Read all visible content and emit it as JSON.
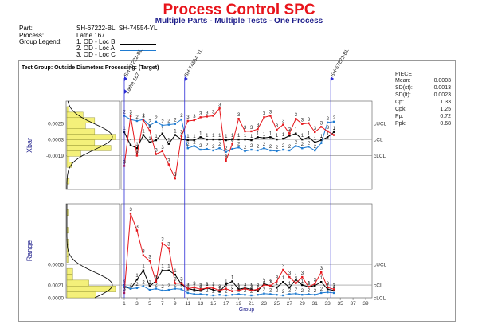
{
  "header": {
    "title": "Process Control SPC",
    "subtitle": "Multiple Parts - Multiple Tests - One Process",
    "part_label": "Part:",
    "part_value": "SH-67222-BL, SH-74554-YL",
    "process_label": "Process:",
    "process_value": "Lathe 167",
    "legend_label": "Group Legend:",
    "legend": [
      {
        "label": "1. OD - Loc B",
        "color": "#000000"
      },
      {
        "label": "2. OD - Loc A",
        "color": "#1f7bd1"
      },
      {
        "label": "3. OD - Loc C",
        "color": "#e5171c"
      }
    ]
  },
  "chart_data": [
    {
      "type": "line",
      "title": "Test Group: Outside Diameters Processing:  (Target)",
      "ylabel": "Xbar",
      "y_ticks": [
        "0.0025",
        "0.0003",
        "-0.0019"
      ],
      "limit_labels": [
        "cUCL",
        "cCL",
        "cLCL"
      ],
      "limits": {
        "ucl": 0.0025,
        "cl": 0.0003,
        "lcl": -0.0019
      },
      "ylim": [
        -0.0065,
        0.0055
      ],
      "x": [
        1,
        2,
        3,
        4,
        5,
        6,
        7,
        8,
        9,
        10,
        11,
        12,
        13,
        14,
        15,
        16,
        17,
        18,
        19,
        20,
        21,
        22,
        23,
        24,
        25,
        26,
        27,
        28,
        29,
        30,
        31,
        32,
        33,
        34
      ],
      "series": [
        {
          "name": "1. OD - Loc B",
          "point_label": "1",
          "color": "#000000",
          "values": [
            0.0013,
            -0.0005,
            -0.0009,
            0.0009,
            -0.0001,
            0.0002,
            0.0011,
            -0.0003,
            0.0009,
            0.0003,
            0.0002,
            0.0002,
            0.0006,
            0.0003,
            0.0003,
            0.0003,
            0.0002,
            0.0003,
            0.0003,
            0.0003,
            0.0002,
            0.0006,
            0.0005,
            0.0006,
            0.0003,
            0.0004,
            0.0008,
            0.0011,
            0.0003,
            0.0006,
            -0.0001,
            0.0002,
            0.0006,
            0.0013
          ]
        },
        {
          "name": "2. OD - Loc A",
          "point_label": "2",
          "color": "#1f7bd1",
          "values": [
            0.0035,
            0.003,
            0.0028,
            0.003,
            0.0022,
            0.0027,
            0.0022,
            0.0023,
            0.0024,
            0.003,
            -0.0009,
            -0.0006,
            -0.0011,
            -0.001,
            -0.0012,
            -0.0009,
            -0.0014,
            -0.001,
            -0.0008,
            -0.0013,
            -0.0011,
            -0.0012,
            -0.0009,
            -0.0012,
            -0.0013,
            -0.0011,
            -0.0012,
            -0.0006,
            -0.0009,
            -0.0007,
            -0.0012,
            -0.0002,
            0.0026,
            0.0027
          ]
        },
        {
          "name": "3. OD - Loc C",
          "point_label": "3",
          "color": "#e5171c",
          "values": [
            -0.0033,
            0.0035,
            -0.0019,
            0.0029,
            0.0015,
            -0.0017,
            -0.0013,
            -0.0031,
            -0.005,
            0.0008,
            0.0028,
            0.0029,
            0.0033,
            0.0034,
            0.0035,
            0.0045,
            -0.0026,
            -0.0003,
            0.0031,
            0.0014,
            0.0014,
            0.0017,
            0.0033,
            0.0035,
            0.0016,
            0.0023,
            0.0011,
            0.0031,
            0.0024,
            0.0025,
            0.0013,
            0.002,
            0.0014,
            0.0009
          ]
        }
      ],
      "markers": [
        {
          "x": 1,
          "label": "SH-67222-BL"
        },
        {
          "x": 10.5,
          "label": "SH-74554-YL"
        },
        {
          "x": 33.5,
          "label": "SH-67222-BL"
        }
      ],
      "process_marker": {
        "x": 1,
        "label": "Lathe 167"
      }
    },
    {
      "type": "line",
      "ylabel": "Range",
      "xlabel": "Group",
      "y_ticks": [
        "0.0055",
        "0.0021",
        "0.0000"
      ],
      "limit_labels": [
        "cUCL",
        "cCL",
        "cLCL"
      ],
      "limits": {
        "ucl": 0.0055,
        "cl": 0.0021,
        "lcl": 0.0
      },
      "ylim": [
        0,
        0.0155
      ],
      "x_ticks": [
        "1",
        "3",
        "5",
        "7",
        "9",
        "11",
        "13",
        "15",
        "17",
        "19",
        "21",
        "23",
        "25",
        "27",
        "29",
        "31",
        "33",
        "35",
        "37",
        "39"
      ],
      "x": [
        1,
        2,
        3,
        4,
        5,
        6,
        7,
        8,
        9,
        10,
        11,
        12,
        13,
        14,
        15,
        16,
        17,
        18,
        19,
        20,
        21,
        22,
        23,
        24,
        25,
        26,
        27,
        28,
        29,
        30,
        31,
        32,
        33,
        34
      ],
      "series": [
        {
          "name": "1. OD - Loc B",
          "point_label": "1",
          "color": "#000000",
          "values": [
            0.0018,
            0.0015,
            0.003,
            0.0045,
            0.0019,
            0.0028,
            0.0045,
            0.0045,
            0.0038,
            0.0022,
            0.0015,
            0.0013,
            0.0012,
            0.0016,
            0.0013,
            0.001,
            0.0022,
            0.0027,
            0.0014,
            0.0016,
            0.0014,
            0.0011,
            0.0023,
            0.002,
            0.0017,
            0.0026,
            0.0017,
            0.003,
            0.0021,
            0.0018,
            0.002,
            0.0026,
            0.0014,
            0.0012
          ]
        },
        {
          "name": "2. OD - Loc A",
          "point_label": "2",
          "color": "#1f7bd1",
          "values": [
            0.002,
            0.0015,
            0.0016,
            0.0019,
            0.0013,
            0.0015,
            0.0012,
            0.0013,
            0.0015,
            0.0014,
            0.0008,
            0.0006,
            0.0006,
            0.0005,
            0.0004,
            0.0005,
            0.0004,
            0.0005,
            0.0006,
            0.0005,
            0.0004,
            0.0005,
            0.0007,
            0.0006,
            0.0005,
            0.0004,
            0.0006,
            0.0007,
            0.0005,
            0.0006,
            0.0005,
            0.0008,
            0.0009,
            0.0008
          ]
        },
        {
          "name": "3. OD - Loc C",
          "point_label": "3",
          "color": "#e5171c",
          "values": [
            0.0008,
            0.0139,
            0.0111,
            0.007,
            0.0061,
            0.0026,
            0.009,
            0.0082,
            0.0024,
            0.0024,
            0.0015,
            0.0017,
            0.0014,
            0.0016,
            0.0016,
            0.0012,
            0.0015,
            0.0011,
            0.0012,
            0.0015,
            0.0012,
            0.0014,
            0.0021,
            0.002,
            0.0027,
            0.0046,
            0.0034,
            0.0024,
            0.0034,
            0.0018,
            0.0023,
            0.0042,
            0.0017,
            0.0014
          ]
        }
      ]
    }
  ],
  "stats": {
    "heading": "PIECE",
    "rows": [
      {
        "label": "Mean:",
        "value": "0.0003"
      },
      {
        "label": "SD(st):",
        "value": "0.0013"
      },
      {
        "label": "SD(lt):",
        "value": "0.0023"
      },
      {
        "label": "Cp:",
        "value": "1.33"
      },
      {
        "label": "Cpk:",
        "value": "1.25"
      },
      {
        "label": "Pp:",
        "value": "0.72"
      },
      {
        "label": "Ppk:",
        "value": "0.68"
      }
    ]
  }
}
